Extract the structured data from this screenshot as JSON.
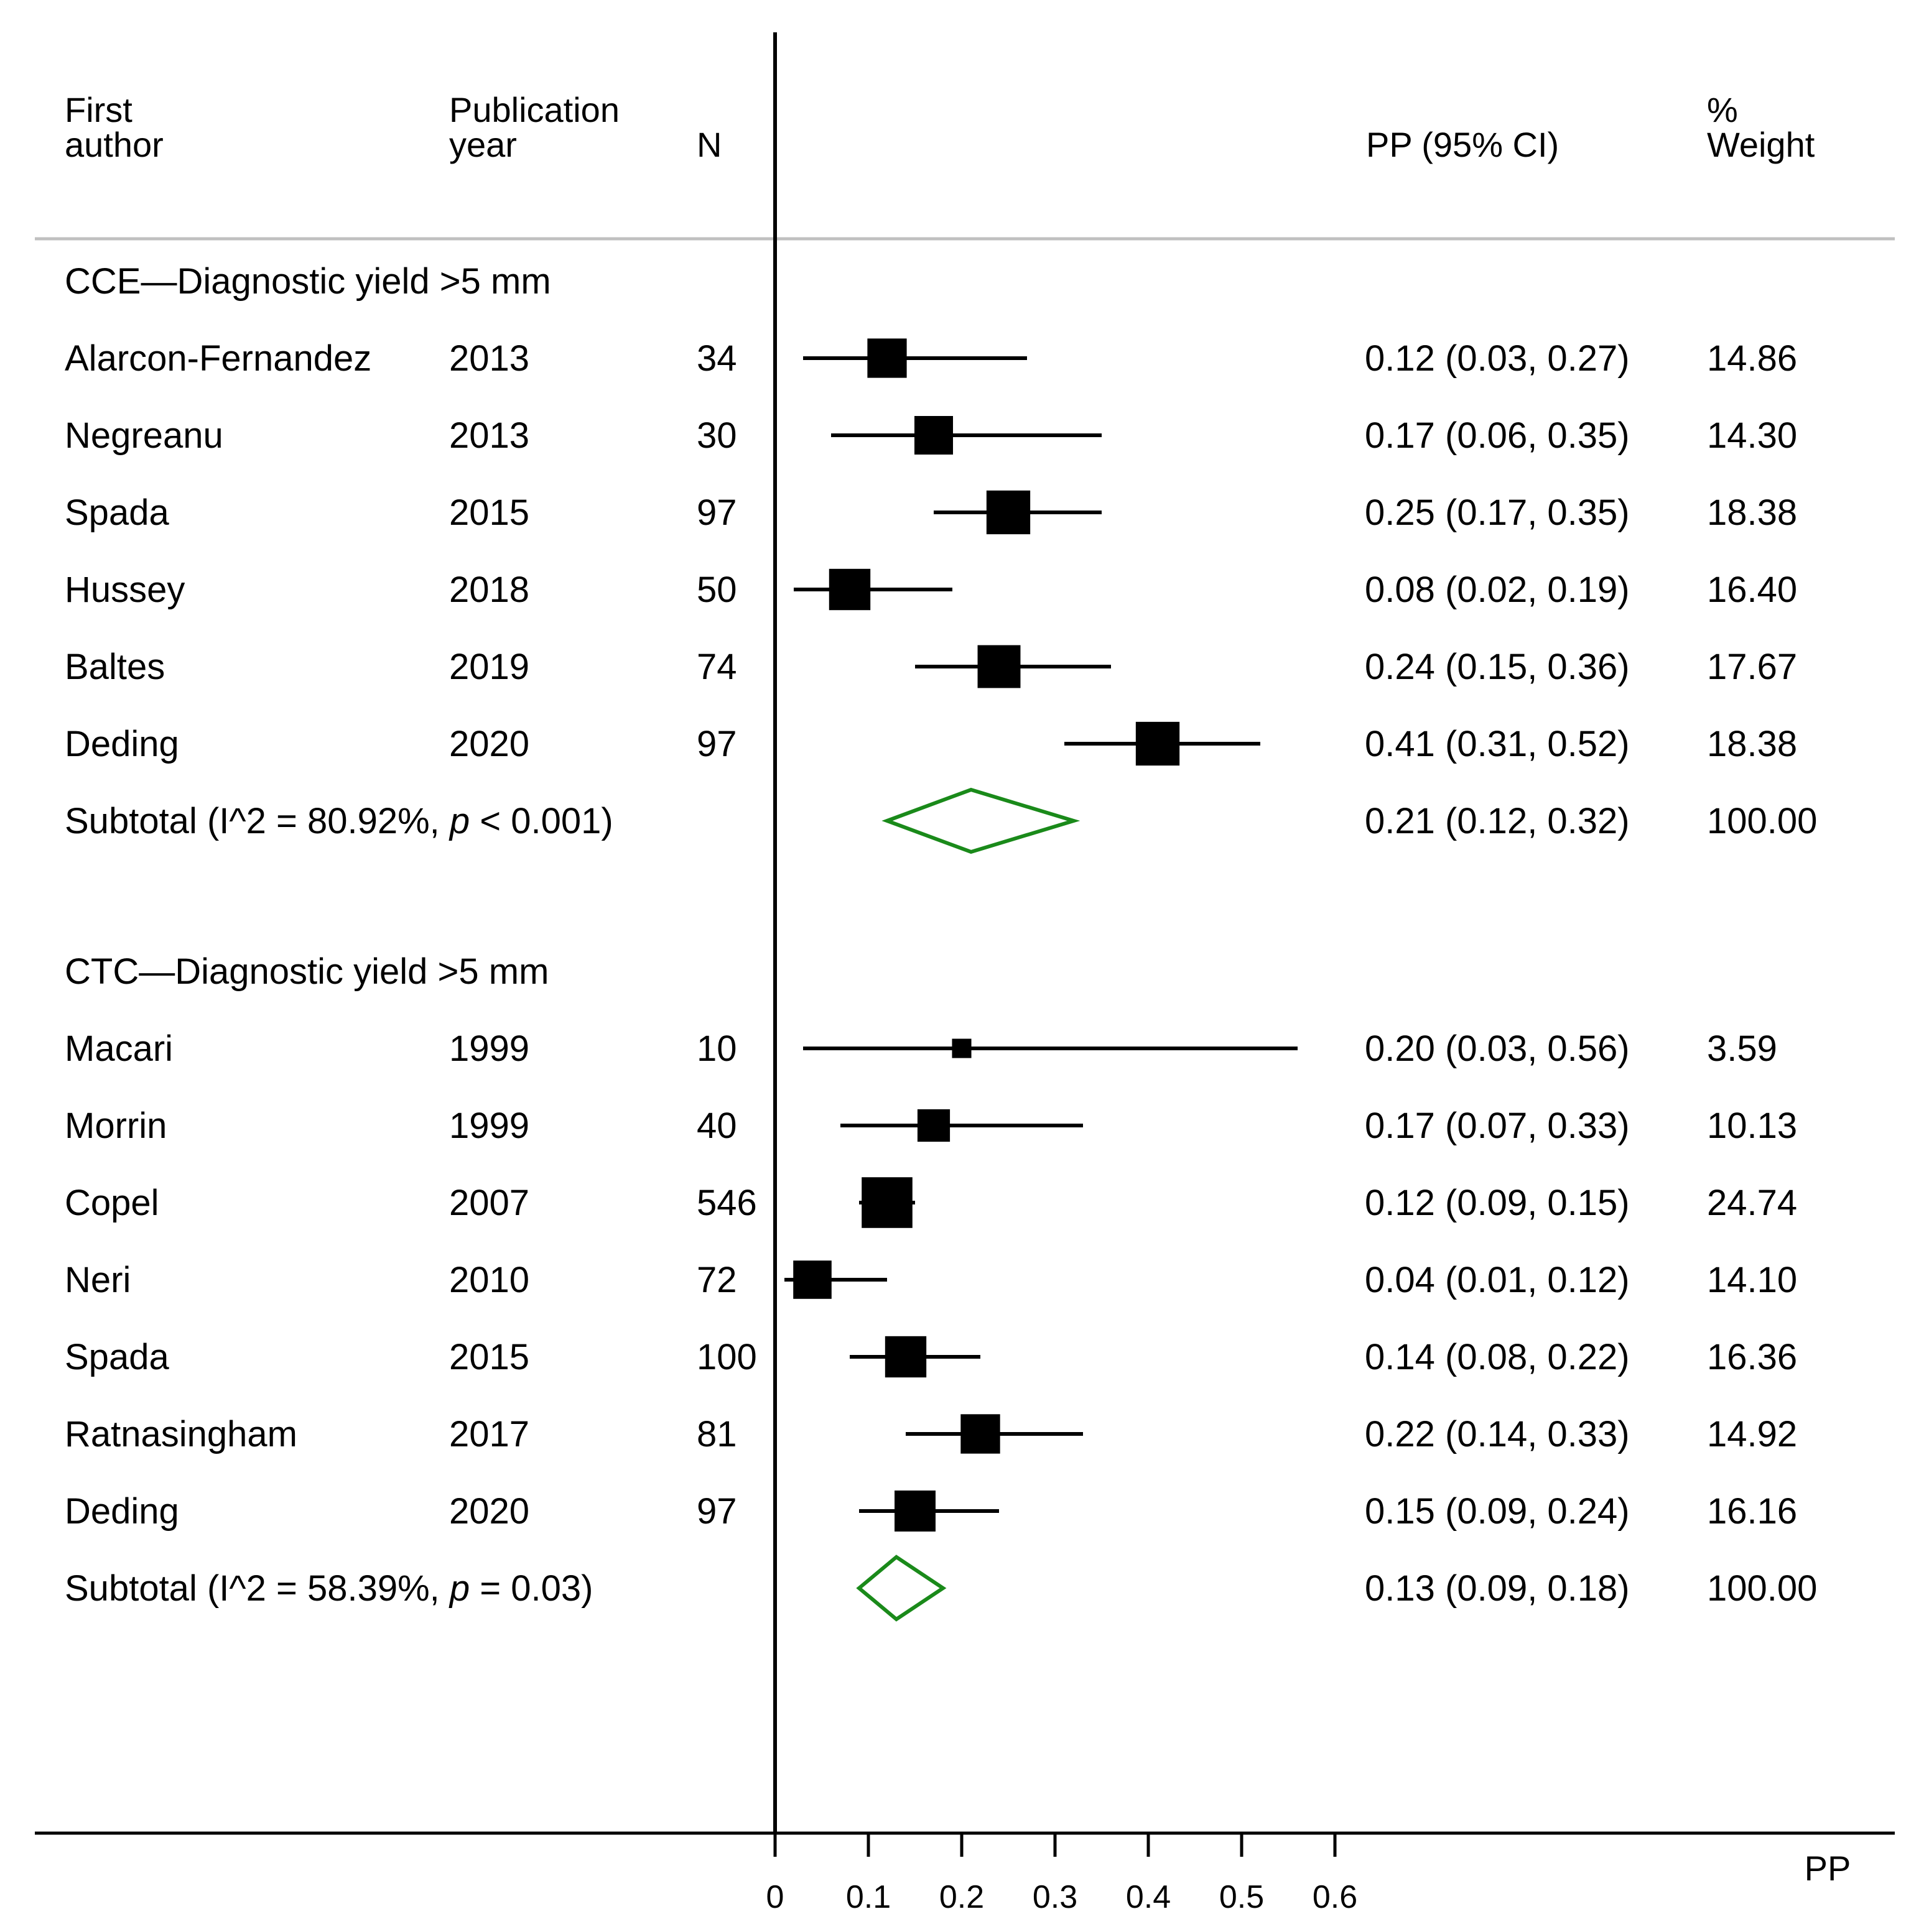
{
  "header": {
    "first_author": [
      "First",
      "author"
    ],
    "publication_year": [
      "Publication",
      "year"
    ],
    "n": "N",
    "estimate": "PP (95% CI)",
    "weight": [
      "%",
      "Weight"
    ]
  },
  "chart_data": {
    "type": "forest",
    "measure": "PP",
    "xlabel": "PP",
    "xlim": [
      0,
      0.6
    ],
    "xticks": [
      0,
      0.1,
      0.2,
      0.3,
      0.4,
      0.5,
      0.6
    ],
    "xtick_labels": [
      "0",
      "0.1",
      "0.2",
      "0.3",
      "0.4",
      "0.5",
      "0.6"
    ],
    "null_line": 0,
    "groups": [
      {
        "title": "CCE—Diagnostic yield >5 mm",
        "studies": [
          {
            "author": "Alarcon-Fernandez",
            "year": "2013",
            "n": "34",
            "est": 0.12,
            "lo": 0.03,
            "hi": 0.27,
            "est_text": "0.12 (0.03, 0.27)",
            "weight": 14.86,
            "weight_text": "14.86"
          },
          {
            "author": "Negreanu",
            "year": "2013",
            "n": "30",
            "est": 0.17,
            "lo": 0.06,
            "hi": 0.35,
            "est_text": "0.17 (0.06, 0.35)",
            "weight": 14.3,
            "weight_text": "14.30"
          },
          {
            "author": "Spada",
            "year": "2015",
            "n": "97",
            "est": 0.25,
            "lo": 0.17,
            "hi": 0.35,
            "est_text": "0.25 (0.17, 0.35)",
            "weight": 18.38,
            "weight_text": "18.38"
          },
          {
            "author": "Hussey",
            "year": "2018",
            "n": "50",
            "est": 0.08,
            "lo": 0.02,
            "hi": 0.19,
            "est_text": "0.08 (0.02, 0.19)",
            "weight": 16.4,
            "weight_text": "16.40"
          },
          {
            "author": "Baltes",
            "year": "2019",
            "n": "74",
            "est": 0.24,
            "lo": 0.15,
            "hi": 0.36,
            "est_text": "0.24 (0.15, 0.36)",
            "weight": 17.67,
            "weight_text": "17.67"
          },
          {
            "author": "Deding",
            "year": "2020",
            "n": "97",
            "est": 0.41,
            "lo": 0.31,
            "hi": 0.52,
            "est_text": "0.41 (0.31, 0.52)",
            "weight": 18.38,
            "weight_text": "18.38"
          }
        ],
        "subtotal": {
          "label": "Subtotal",
          "stat_prefix": "(I^2 = 80.92%, ",
          "p_symbol": "p",
          "stat_suffix": " < 0.001)",
          "est": 0.21,
          "lo": 0.12,
          "hi": 0.32,
          "est_text": "0.21 (0.12, 0.32)",
          "weight_text": "100.00"
        }
      },
      {
        "title": "CTC—Diagnostic yield >5 mm",
        "studies": [
          {
            "author": "Macari",
            "year": "1999",
            "n": "10",
            "est": 0.2,
            "lo": 0.03,
            "hi": 0.56,
            "est_text": "0.20 (0.03, 0.56)",
            "weight": 3.59,
            "weight_text": "3.59"
          },
          {
            "author": "Morrin",
            "year": "1999",
            "n": "40",
            "est": 0.17,
            "lo": 0.07,
            "hi": 0.33,
            "est_text": "0.17 (0.07, 0.33)",
            "weight": 10.13,
            "weight_text": "10.13"
          },
          {
            "author": "Copel",
            "year": "2007",
            "n": "546",
            "est": 0.12,
            "lo": 0.09,
            "hi": 0.15,
            "est_text": "0.12 (0.09, 0.15)",
            "weight": 24.74,
            "weight_text": "24.74"
          },
          {
            "author": "Neri",
            "year": "2010",
            "n": "72",
            "est": 0.04,
            "lo": 0.01,
            "hi": 0.12,
            "est_text": "0.04 (0.01, 0.12)",
            "weight": 14.1,
            "weight_text": "14.10"
          },
          {
            "author": "Spada",
            "year": "2015",
            "n": "100",
            "est": 0.14,
            "lo": 0.08,
            "hi": 0.22,
            "est_text": "0.14 (0.08, 0.22)",
            "weight": 16.36,
            "weight_text": "16.36"
          },
          {
            "author": "Ratnasingham",
            "year": "2017",
            "n": "81",
            "est": 0.22,
            "lo": 0.14,
            "hi": 0.33,
            "est_text": "0.22 (0.14, 0.33)",
            "weight": 14.92,
            "weight_text": "14.92"
          },
          {
            "author": "Deding",
            "year": "2020",
            "n": "97",
            "est": 0.15,
            "lo": 0.09,
            "hi": 0.24,
            "est_text": "0.15 (0.09, 0.24)",
            "weight": 16.16,
            "weight_text": "16.16"
          }
        ],
        "subtotal": {
          "label": "Subtotal",
          "stat_prefix": "(I^2 = 58.39%, ",
          "p_symbol": "p",
          "stat_suffix": " = 0.03)",
          "est": 0.13,
          "lo": 0.09,
          "hi": 0.18,
          "est_text": "0.13 (0.09, 0.18)",
          "weight_text": "100.00"
        }
      }
    ]
  },
  "colors": {
    "foreground": "#000000",
    "separator": "#c0c0c0",
    "diamond": "#1a8a1a"
  }
}
